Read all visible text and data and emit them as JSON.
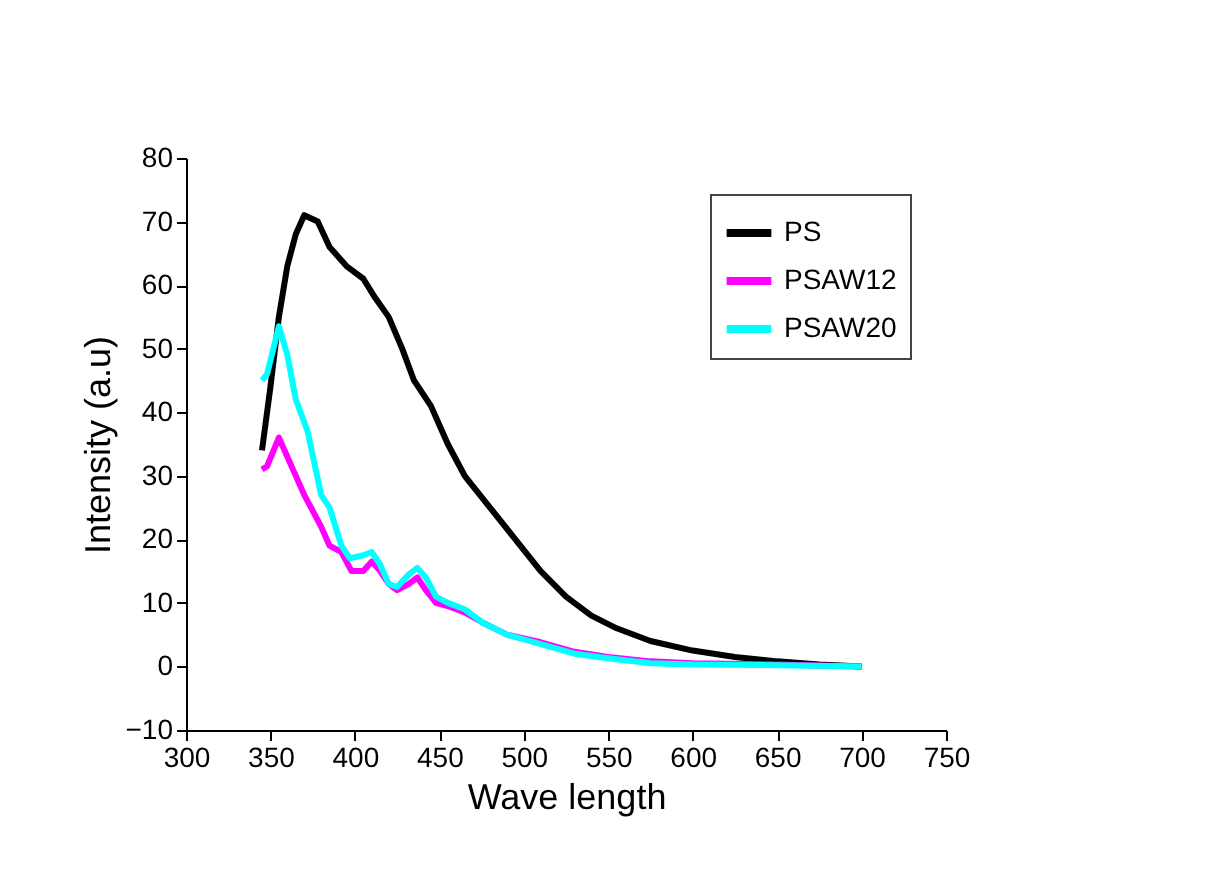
{
  "chart_data": {
    "type": "line",
    "xlabel": "Wave length",
    "ylabel": "Intensity (a.u)",
    "xlim": [
      300,
      750
    ],
    "xticks": [
      300,
      350,
      400,
      450,
      500,
      550,
      600,
      650,
      700,
      750
    ],
    "ylim": [
      -10,
      80
    ],
    "yticks": [
      -10,
      0,
      10,
      20,
      30,
      40,
      50,
      60,
      70,
      80
    ],
    "grid": false,
    "legend": "top right",
    "marker": "none",
    "line_style": "solid",
    "series": [
      {
        "name": "PS",
        "color": "#000000",
        "x": [
          345,
          350,
          355,
          360,
          365,
          370,
          378,
          385,
          395,
          405,
          412,
          420,
          428,
          435,
          445,
          455,
          465,
          480,
          495,
          510,
          525,
          540,
          555,
          575,
          600,
          625,
          650,
          675,
          700
        ],
        "values": [
          34,
          44,
          55,
          63,
          68,
          71,
          70,
          66,
          63,
          61,
          58,
          55,
          50,
          45,
          41,
          35,
          30,
          25,
          20,
          15,
          11,
          8,
          6,
          4,
          2.5,
          1.5,
          0.8,
          0.3,
          0
        ]
      },
      {
        "name": "PSAW12",
        "color": "#ff00ff",
        "x": [
          345,
          348,
          355,
          360,
          370,
          380,
          385,
          392,
          398,
          405,
          410,
          415,
          420,
          425,
          432,
          437,
          442,
          448,
          455,
          465,
          475,
          490,
          510,
          530,
          550,
          575,
          600,
          650,
          700
        ],
        "values": [
          31,
          31.5,
          36,
          33,
          27,
          22,
          19,
          18,
          15,
          15,
          16.5,
          15,
          13,
          12,
          13,
          14,
          12,
          10,
          9.5,
          8.5,
          7,
          5,
          3.8,
          2.3,
          1.5,
          0.8,
          0.5,
          0.3,
          0
        ]
      },
      {
        "name": "PSAW20",
        "color": "#00ffff",
        "x": [
          345,
          348,
          355,
          360,
          365,
          372,
          380,
          385,
          392,
          397,
          405,
          410,
          415,
          420,
          425,
          432,
          437,
          442,
          448,
          455,
          465,
          475,
          490,
          510,
          530,
          550,
          575,
          600,
          650,
          700
        ],
        "values": [
          45,
          46,
          53.5,
          49,
          42,
          37,
          27,
          25,
          19,
          17,
          17.5,
          18,
          16,
          13,
          12.5,
          14.5,
          15.5,
          14,
          11,
          10,
          9,
          7,
          5,
          3.5,
          2,
          1.3,
          0.5,
          0.3,
          0.2,
          0
        ]
      }
    ]
  }
}
